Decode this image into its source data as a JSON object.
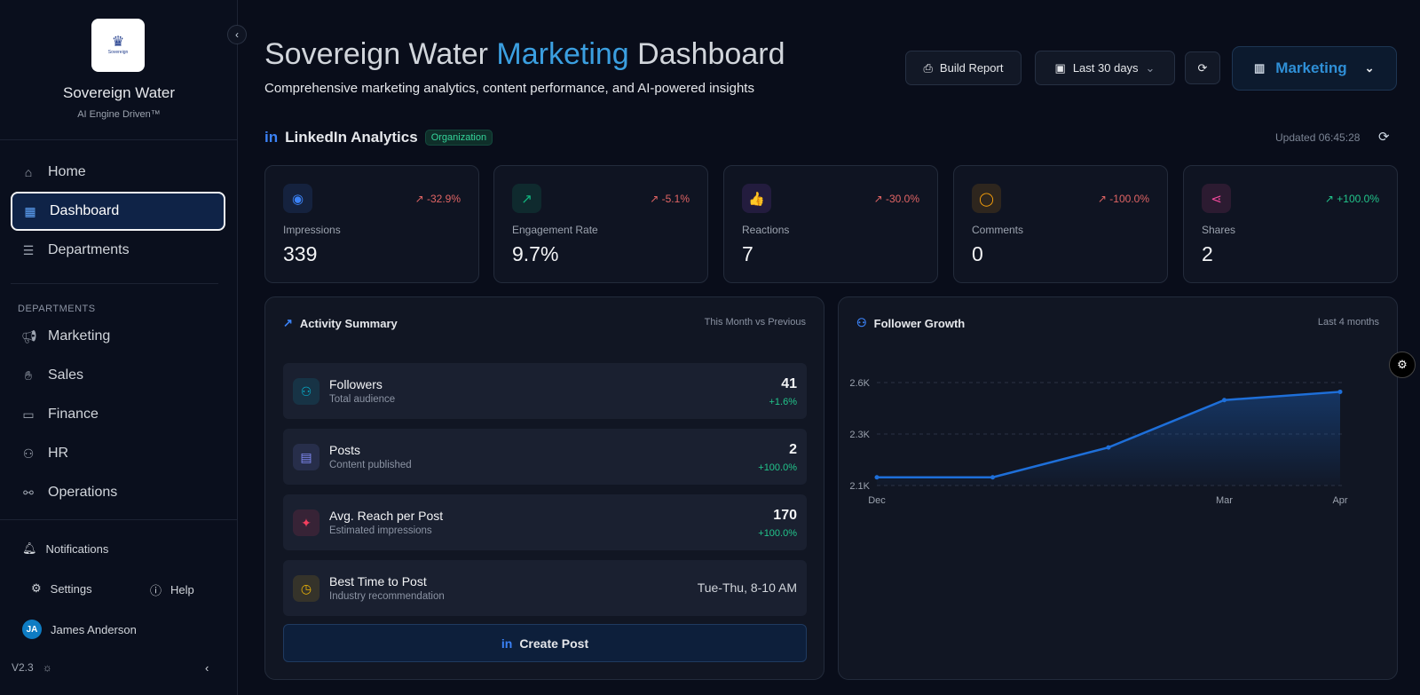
{
  "sidebar": {
    "brand": "Sovereign Water",
    "logo_text": "Sovereign",
    "tagline": "AI Engine Driven™",
    "nav": [
      {
        "label": "Home"
      },
      {
        "label": "Dashboard"
      },
      {
        "label": "Departments"
      }
    ],
    "section_label": "DEPARTMENTS",
    "departments": [
      {
        "label": "Marketing"
      },
      {
        "label": "Sales"
      },
      {
        "label": "Finance"
      },
      {
        "label": "HR"
      },
      {
        "label": "Operations"
      }
    ],
    "notifications": "Notifications",
    "settings": "Settings",
    "help": "Help",
    "user": {
      "initials": "JA",
      "name": "James Anderson"
    },
    "version": "V2.3"
  },
  "header": {
    "title_pre": "Sovereign Water ",
    "title_accent": "Marketing",
    "title_post": " Dashboard",
    "subtitle": "Comprehensive marketing analytics, content performance, and AI-powered insights",
    "build_report": "Build Report",
    "date_range": "Last 30 days",
    "department": "Marketing"
  },
  "linkedin": {
    "title": "LinkedIn Analytics",
    "badge": "Organization",
    "updated": "Updated 06:45:28",
    "kpis": [
      {
        "label": "Impressions",
        "value": "339",
        "change": "-32.9%",
        "trend": "down",
        "color": "#3b82f6",
        "icon": "◉"
      },
      {
        "label": "Engagement Rate",
        "value": "9.7%",
        "change": "-5.1%",
        "trend": "down",
        "color": "#10b981",
        "icon": "↗"
      },
      {
        "label": "Reactions",
        "value": "7",
        "change": "-30.0%",
        "trend": "down",
        "color": "#a855f7",
        "icon": "👍"
      },
      {
        "label": "Comments",
        "value": "0",
        "change": "-100.0%",
        "trend": "down",
        "color": "#f59e0b",
        "icon": "◯"
      },
      {
        "label": "Shares",
        "value": "2",
        "change": "+100.0%",
        "trend": "up",
        "color": "#ec4899",
        "icon": "⋖"
      }
    ]
  },
  "activity": {
    "title": "Activity Summary",
    "period": "This Month vs Previous",
    "rows": [
      {
        "title": "Followers",
        "sub": "Total audience",
        "value": "41",
        "delta": "+1.6%"
      },
      {
        "title": "Posts",
        "sub": "Content published",
        "value": "2",
        "delta": "+100.0%"
      },
      {
        "title": "Avg. Reach per Post",
        "sub": "Estimated impressions",
        "value": "170",
        "delta": "+100.0%"
      },
      {
        "title": "Best Time to Post",
        "sub": "Industry recommendation",
        "value": "Tue-Thu, 8-10 AM"
      }
    ],
    "create_post": "Create Post"
  },
  "growth": {
    "title": "Follower Growth",
    "period": "Last 4 months"
  },
  "chart_data": {
    "type": "area",
    "title": "Follower Growth",
    "x": [
      "Dec",
      "",
      "",
      "Mar",
      "Apr"
    ],
    "values": [
      2140,
      2140,
      2285,
      2515,
      2555
    ],
    "yticks": [
      "2.1K",
      "2.3K",
      "2.6K"
    ],
    "ylim": [
      2100,
      2600
    ],
    "grid": true,
    "color": "#1e6fd9"
  }
}
